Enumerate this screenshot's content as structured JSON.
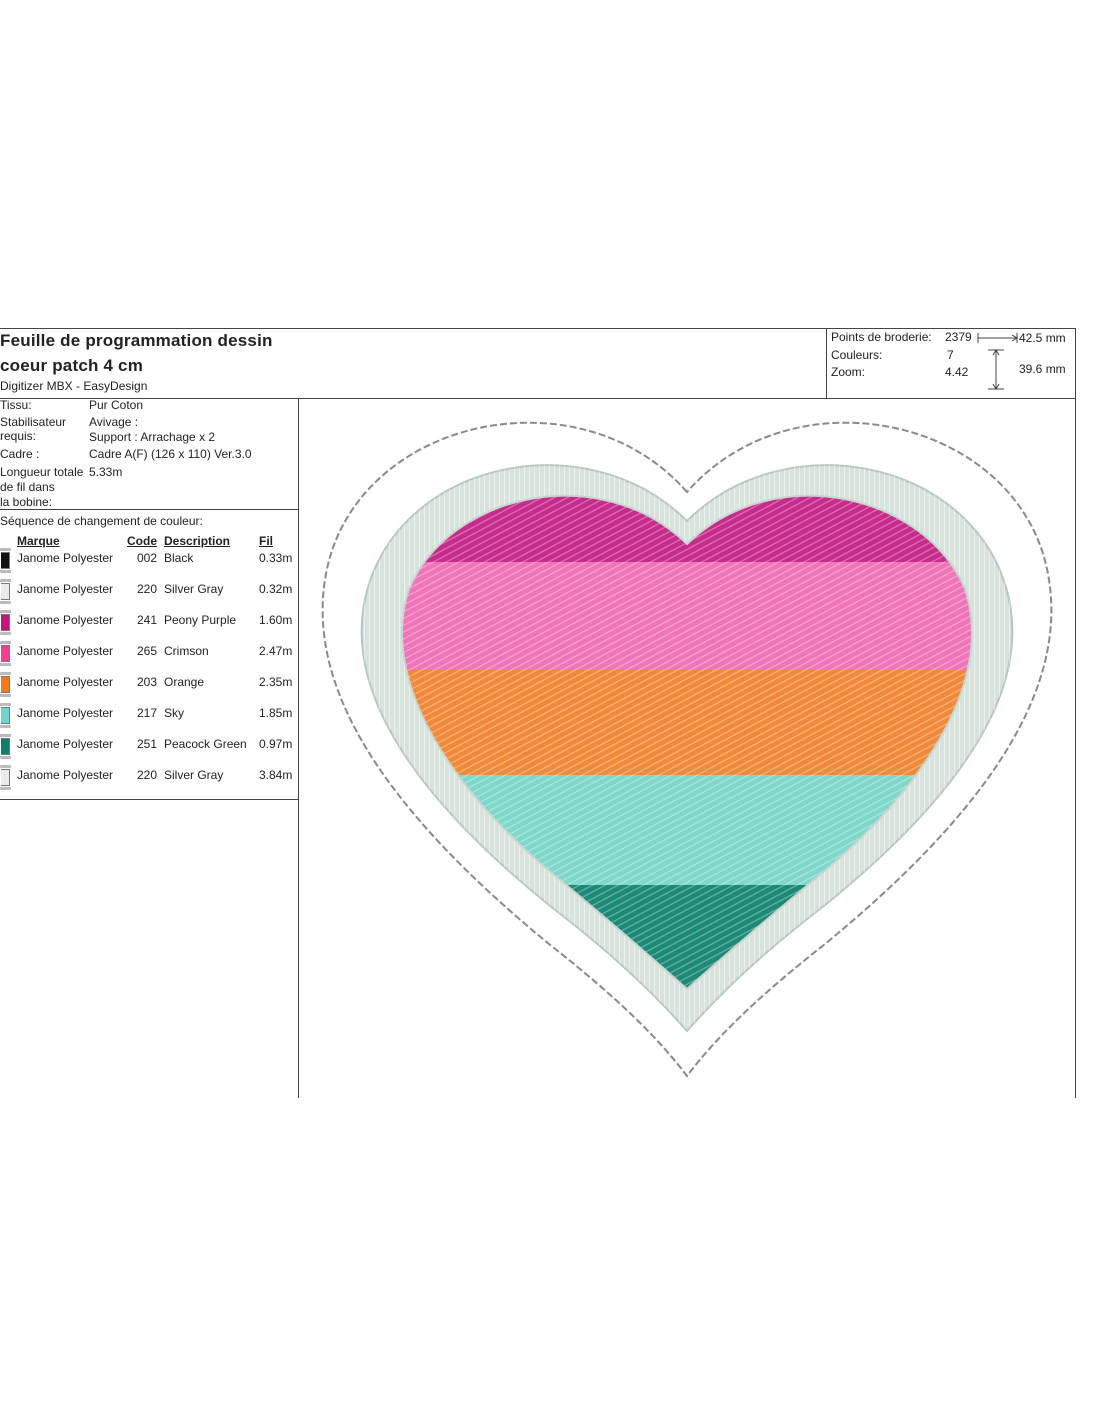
{
  "header": {
    "title_line1": "Feuille de programmation dessin",
    "title_line2": "coeur patch 4 cm",
    "software": "Digitizer MBX - EasyDesign"
  },
  "stats": {
    "stitches_label": "Points de broderie:",
    "stitches_value": "2379",
    "colors_label": "Couleurs:",
    "colors_value": "7",
    "zoom_label": "Zoom:",
    "zoom_value": "4.42",
    "width": "42.5 mm",
    "height": "39.6 mm"
  },
  "info": [
    {
      "label": "Tissu:",
      "value": "Pur Coton"
    },
    {
      "label": "Stabilisateur",
      "value": "Avivage :"
    },
    {
      "label": "requis:",
      "value": "Support : Arrachage x 2"
    },
    {
      "label": "Cadre :",
      "value": "Cadre A(F) (126 x 110) Ver.3.0"
    },
    {
      "label": "Longueur totale",
      "value": "5.33m"
    },
    {
      "label": "de fil dans",
      "value": ""
    },
    {
      "label": "la bobine:",
      "value": ""
    }
  ],
  "sequence": {
    "title": "Séquence de changement de couleur:",
    "headers": {
      "brand": "Marque",
      "code": "Code",
      "description": "Description",
      "length": "Fil"
    },
    "rows": [
      {
        "brand": "Janome Polyester",
        "code": "002",
        "description": "Black",
        "length": "0.33m",
        "color": "#111111"
      },
      {
        "brand": "Janome Polyester",
        "code": "220",
        "description": "Silver Gray",
        "length": "0.32m",
        "color": "#e9ece9"
      },
      {
        "brand": "Janome Polyester",
        "code": "241",
        "description": "Peony Purple",
        "length": "1.60m",
        "color": "#c2187e"
      },
      {
        "brand": "Janome Polyester",
        "code": "265",
        "description": "Crimson",
        "length": "2.47m",
        "color": "#ee3f93"
      },
      {
        "brand": "Janome Polyester",
        "code": "203",
        "description": "Orange",
        "length": "2.35m",
        "color": "#f47a1f"
      },
      {
        "brand": "Janome Polyester",
        "code": "217",
        "description": "Sky",
        "length": "1.85m",
        "color": "#6fd3cf"
      },
      {
        "brand": "Janome Polyester",
        "code": "251",
        "description": "Peacock Green",
        "length": "0.97m",
        "color": "#0f7e6e"
      },
      {
        "brand": "Janome Polyester",
        "code": "220",
        "description": "Silver Gray",
        "length": "3.84m",
        "color": "#e9ece9"
      }
    ]
  },
  "design_colors": {
    "outline": "#8a8a8a",
    "satin_border": "#d9e3dd",
    "band_purple": "#c72b8c",
    "band_pink": "#f074b8",
    "band_orange": "#f08a3a",
    "band_sky": "#7fd8cb",
    "band_green": "#1c8a77"
  }
}
